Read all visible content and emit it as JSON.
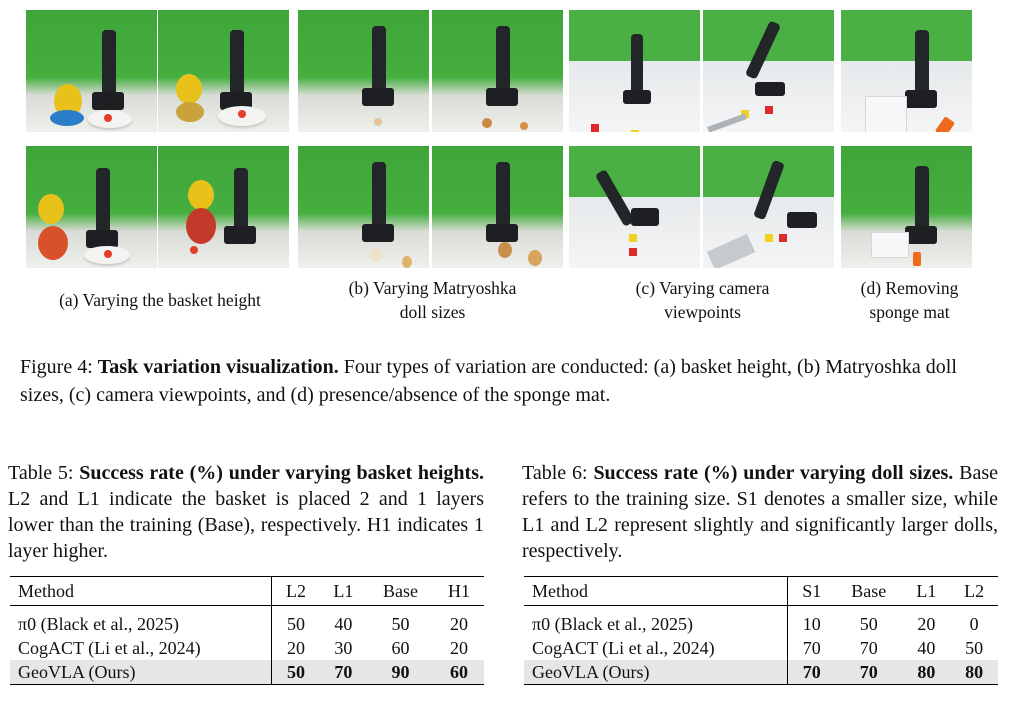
{
  "figure": {
    "subcaptions": {
      "a": "(a) Varying the basket height",
      "b_line1": "(b) Varying Matryoshka",
      "b_line2": "doll sizes",
      "c_line1": "(c) Varying camera",
      "c_line2": "viewpoints",
      "d_line1": "(d) Removing",
      "d_line2": "sponge mat"
    },
    "caption_label": "Figure 4:",
    "caption_bold": "Task variation visualization.",
    "caption_text": "Four types of variation are conducted: (a) basket height, (b) Matryoshka doll sizes, (c) camera viewpoints, and (d) presence/absence of the sponge mat."
  },
  "table5": {
    "label": "Table 5:",
    "bold": "Success rate (%) under varying basket heights.",
    "text": "L2 and L1 indicate the basket is placed 2 and 1 layers lower than the training (Base), respectively. H1 indicates 1 layer higher.",
    "columns": [
      "Method",
      "L2",
      "L1",
      "Base",
      "H1"
    ],
    "rows": [
      {
        "method": "π0 (Black et al., 2025)",
        "values": [
          "50",
          "40",
          "50",
          "20"
        ]
      },
      {
        "method": "CogACT (Li et al., 2024)",
        "values": [
          "20",
          "30",
          "60",
          "20"
        ]
      },
      {
        "method": "GeoVLA (Ours)",
        "values": [
          "50",
          "70",
          "90",
          "60"
        ]
      }
    ]
  },
  "table6": {
    "label": "Table 6:",
    "bold": "Success rate (%) under varying doll sizes.",
    "text": "Base refers to the training size. S1 denotes a smaller size, while L1 and L2 represent slightly and significantly larger dolls, respectively.",
    "columns": [
      "Method",
      "S1",
      "Base",
      "L1",
      "L2"
    ],
    "rows": [
      {
        "method": "π0 (Black et al., 2025)",
        "values": [
          "10",
          "50",
          "20",
          "0"
        ]
      },
      {
        "method": "CogACT (Li et al., 2024)",
        "values": [
          "70",
          "70",
          "40",
          "50"
        ]
      },
      {
        "method": "GeoVLA (Ours)",
        "values": [
          "70",
          "70",
          "80",
          "80"
        ]
      }
    ]
  }
}
